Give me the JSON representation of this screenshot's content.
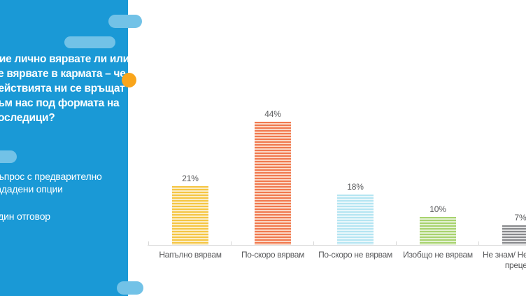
{
  "panel": {
    "background": "#1A99D6",
    "pill_color": "#72C2E7",
    "dot_color": "#F9A51B",
    "question": "Вие лично вярвате ли или\nне вярвате в кармата – че\nдействията ни се връщат\nкъм нас под формата на\nпоследици?",
    "note_method": "Въпрос с предварително\nзададени опции",
    "note_answers": "Един отговор"
  },
  "chart_data": {
    "type": "bar",
    "title": "",
    "xlabel": "",
    "ylabel": "",
    "unit": "%",
    "categories": [
      "Напълно вярвам",
      "По-скоро вярвам",
      "По-скоро не вярвам",
      "Изобщо не вярвам",
      "Не знам/ Не мога да\nпреценя"
    ],
    "values": [
      21,
      44,
      18,
      10,
      7
    ],
    "value_labels": [
      "21%",
      "44%",
      "18%",
      "10%",
      "7%"
    ],
    "ylim": [
      0,
      50
    ],
    "grid": false,
    "legend": false,
    "axis_color": "#D8D8D8",
    "label_color": "#58595B",
    "bar_styles": [
      {
        "name": "yellow",
        "stripe": "#F5C644",
        "stripe_light": "#FBEDC6"
      },
      {
        "name": "orange",
        "stripe": "#F1794F",
        "stripe_light": "#FAD7C5"
      },
      {
        "name": "cyan",
        "stripe": "#B5E5F2",
        "stripe_light": "#E9F7FB"
      },
      {
        "name": "green",
        "stripe": "#A8D36F",
        "stripe_light": "#E3F1D2"
      },
      {
        "name": "gray",
        "stripe": "#88898C",
        "stripe_light": "#E2E2E3"
      }
    ]
  }
}
